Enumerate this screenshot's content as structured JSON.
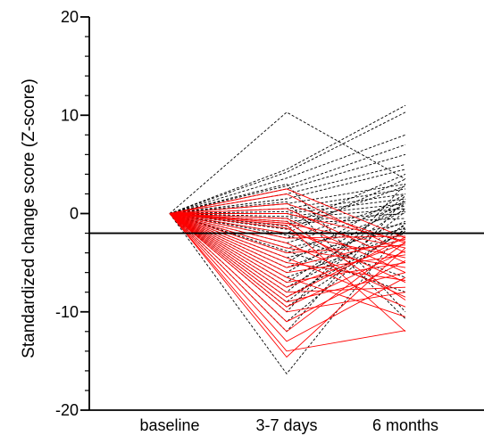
{
  "chart_data": {
    "type": "line",
    "ylabel": "Standardized change score (Z-score)",
    "xlabel": "",
    "categories": [
      "baseline",
      "3-7 days",
      "6 months"
    ],
    "ylim": [
      -20,
      20
    ],
    "yticks": [
      20,
      10,
      0,
      -10,
      -20
    ],
    "reference_line": {
      "y": -2,
      "color": "#000000"
    },
    "grid": false,
    "colors": {
      "above_threshold": "#000000",
      "below_threshold": "#ff0000"
    },
    "series_groups": [
      {
        "style": "dashed",
        "color": "#000000",
        "lines": [
          [
            0,
            10.3,
            3.5
          ],
          [
            0,
            4.5,
            11.0
          ],
          [
            0,
            4.2,
            10.3
          ],
          [
            0,
            3.6,
            8.0
          ],
          [
            0,
            2.8,
            7.0
          ],
          [
            0,
            2.5,
            6.0
          ],
          [
            0,
            2.0,
            5.0
          ],
          [
            0,
            1.5,
            4.5
          ],
          [
            0,
            1.0,
            3.0
          ],
          [
            0,
            0.5,
            2.5
          ],
          [
            0,
            0.2,
            2.0
          ],
          [
            0,
            0.0,
            1.5
          ],
          [
            0,
            -0.3,
            1.0
          ],
          [
            0,
            -0.5,
            0.5
          ],
          [
            0,
            -0.8,
            0.0
          ],
          [
            0,
            -1.0,
            -0.5
          ],
          [
            0,
            -1.3,
            4.0
          ],
          [
            0,
            -1.6,
            2.8
          ],
          [
            0,
            -2.0,
            3.5
          ],
          [
            0,
            -2.5,
            1.2
          ],
          [
            0,
            -3.0,
            0.8
          ],
          [
            0,
            -3.5,
            -1.0
          ],
          [
            0,
            -4.0,
            0.3
          ],
          [
            0,
            -4.5,
            -1.5
          ],
          [
            0,
            -5.0,
            2.0
          ],
          [
            0,
            -5.5,
            -0.8
          ],
          [
            0,
            -6.0,
            1.0
          ],
          [
            0,
            -6.5,
            -2.0
          ],
          [
            0,
            -7.0,
            0.5
          ],
          [
            0,
            -7.5,
            -1.2
          ],
          [
            0,
            -8.0,
            1.8
          ],
          [
            0,
            -8.5,
            -1.8
          ],
          [
            0,
            -9.0,
            0.2
          ],
          [
            0,
            -9.5,
            -1.6
          ],
          [
            0,
            -10.0,
            3.0
          ],
          [
            0,
            -11.0,
            -1.0
          ],
          [
            0,
            -12.0,
            1.5
          ],
          [
            0,
            -16.3,
            -1.3
          ],
          [
            0,
            3.0,
            -10.0
          ],
          [
            0,
            1.2,
            -10.7
          ],
          [
            0,
            -2.2,
            -6.5
          ],
          [
            0,
            -3.8,
            -8.0
          ]
        ]
      },
      {
        "style": "solid",
        "color": "#ff0000",
        "lines": [
          [
            0,
            2.5,
            -2.5
          ],
          [
            0,
            2.0,
            -4.0
          ],
          [
            0,
            1.0,
            -3.0
          ],
          [
            0,
            0.5,
            -5.0
          ],
          [
            0,
            0.0,
            -2.8
          ],
          [
            0,
            -0.5,
            -6.0
          ],
          [
            0,
            -1.0,
            -3.5
          ],
          [
            0,
            -1.5,
            -7.0
          ],
          [
            0,
            -2.0,
            -4.5
          ],
          [
            0,
            -2.5,
            -2.3
          ],
          [
            0,
            -3.0,
            -8.5
          ],
          [
            0,
            -3.5,
            -5.5
          ],
          [
            0,
            -4.0,
            -3.2
          ],
          [
            0,
            -4.5,
            -9.5
          ],
          [
            0,
            -5.0,
            -6.8
          ],
          [
            0,
            -5.5,
            -2.6
          ],
          [
            0,
            -6.0,
            -4.2
          ],
          [
            0,
            -6.5,
            -10.5
          ],
          [
            0,
            -7.0,
            -5.0
          ],
          [
            0,
            -7.5,
            -3.0
          ],
          [
            0,
            -8.0,
            -7.5
          ],
          [
            0,
            -8.5,
            -2.4
          ],
          [
            0,
            -9.0,
            -6.0
          ],
          [
            0,
            -9.5,
            -3.8
          ],
          [
            0,
            -10.0,
            -8.0
          ],
          [
            0,
            -11.0,
            -4.8
          ],
          [
            0,
            -12.0,
            -2.9
          ],
          [
            0,
            -13.0,
            -6.5
          ],
          [
            0,
            -14.6,
            -3.5
          ],
          [
            0,
            -14.0,
            -11.9
          ],
          [
            0,
            -1.2,
            -12.0
          ],
          [
            0,
            -0.8,
            -8.8
          ]
        ]
      }
    ]
  }
}
